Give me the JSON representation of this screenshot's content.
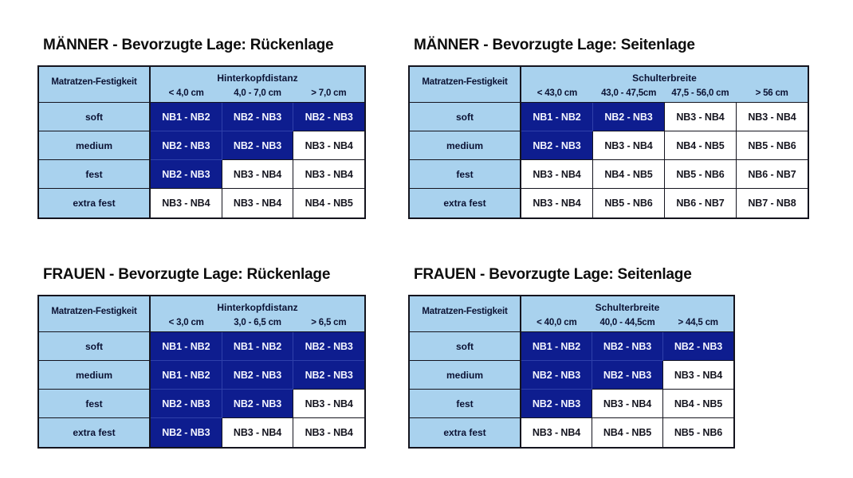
{
  "colors": {
    "light_blue": "#a9d2ee",
    "dark_blue": "#0e1d8f",
    "divider_blue": "#2f40aa",
    "grid_black": "#14141e",
    "cell_white": "#ffffff",
    "header_text_navy": "#0b1233",
    "dark_cell_text": "#f4f6ff",
    "light_cell_text": "#15151f",
    "title_color": "#0d0d0d"
  },
  "tables": [
    {
      "id": "maenner-rueckenlage",
      "title": "MÄNNER - Bevorzugte Lage: Rückenlage",
      "corner_label": "Matratzen-Festigkeit",
      "group_label": "Hinterkopfdistanz",
      "col_labels": [
        "< 4,0 cm",
        "4,0 - 7,0 cm",
        "> 7,0 cm"
      ],
      "row_labels": [
        "soft",
        "medium",
        "fest",
        "extra fest"
      ],
      "values": [
        [
          "NB1 - NB2",
          "NB2 - NB3",
          "NB2 - NB3"
        ],
        [
          "NB2 - NB3",
          "NB2 - NB3",
          "NB3 - NB4"
        ],
        [
          "NB2 - NB3",
          "NB3 - NB4",
          "NB3 - NB4"
        ],
        [
          "NB3 - NB4",
          "NB3 - NB4",
          "NB4 - NB5"
        ]
      ],
      "highlighted": [
        [
          true,
          true,
          true
        ],
        [
          true,
          true,
          false
        ],
        [
          true,
          false,
          false
        ],
        [
          false,
          false,
          false
        ]
      ]
    },
    {
      "id": "maenner-seitenlage",
      "title": "MÄNNER - Bevorzugte Lage: Seitenlage",
      "corner_label": "Matratzen-Festigkeit",
      "group_label": "Schulterbreite",
      "col_labels": [
        "< 43,0 cm",
        "43,0 - 47,5cm",
        "47,5 - 56,0 cm",
        "> 56 cm"
      ],
      "row_labels": [
        "soft",
        "medium",
        "fest",
        "extra fest"
      ],
      "values": [
        [
          "NB1 - NB2",
          "NB2 - NB3",
          "NB3 - NB4",
          "NB3 - NB4"
        ],
        [
          "NB2 - NB3",
          "NB3 - NB4",
          "NB4 - NB5",
          "NB5 - NB6"
        ],
        [
          "NB3 - NB4",
          "NB4 - NB5",
          "NB5 - NB6",
          "NB6 - NB7"
        ],
        [
          "NB3 - NB4",
          "NB5 - NB6",
          "NB6 - NB7",
          "NB7 - NB8"
        ]
      ],
      "highlighted": [
        [
          true,
          true,
          false,
          false
        ],
        [
          true,
          false,
          false,
          false
        ],
        [
          false,
          false,
          false,
          false
        ],
        [
          false,
          false,
          false,
          false
        ]
      ]
    },
    {
      "id": "frauen-rueckenlage",
      "title": "FRAUEN - Bevorzugte Lage: Rückenlage",
      "corner_label": "Matratzen-Festigkeit",
      "group_label": "Hinterkopfdistanz",
      "col_labels": [
        "< 3,0 cm",
        "3,0 - 6,5 cm",
        "> 6,5 cm"
      ],
      "row_labels": [
        "soft",
        "medium",
        "fest",
        "extra fest"
      ],
      "values": [
        [
          "NB1 - NB2",
          "NB1 - NB2",
          "NB2 - NB3"
        ],
        [
          "NB1 - NB2",
          "NB2 - NB3",
          "NB2 - NB3"
        ],
        [
          "NB2 - NB3",
          "NB2 - NB3",
          "NB3 - NB4"
        ],
        [
          "NB2 - NB3",
          "NB3 - NB4",
          "NB3 - NB4"
        ]
      ],
      "highlighted": [
        [
          true,
          true,
          true
        ],
        [
          true,
          true,
          true
        ],
        [
          true,
          true,
          false
        ],
        [
          true,
          false,
          false
        ]
      ]
    },
    {
      "id": "frauen-seitenlage",
      "title": "FRAUEN - Bevorzugte Lage: Seitenlage",
      "corner_label": "Matratzen-Festigkeit",
      "group_label": "Schulterbreite",
      "col_labels": [
        "< 40,0 cm",
        "40,0 - 44,5cm",
        "> 44,5 cm"
      ],
      "row_labels": [
        "soft",
        "medium",
        "fest",
        "extra fest"
      ],
      "values": [
        [
          "NB1 - NB2",
          "NB2 - NB3",
          "NB2 - NB3"
        ],
        [
          "NB2 - NB3",
          "NB2 - NB3",
          "NB3 - NB4"
        ],
        [
          "NB2 - NB3",
          "NB3 - NB4",
          "NB4 - NB5"
        ],
        [
          "NB3 - NB4",
          "NB4 - NB5",
          "NB5 - NB6"
        ]
      ],
      "highlighted": [
        [
          true,
          true,
          true
        ],
        [
          true,
          true,
          false
        ],
        [
          true,
          false,
          false
        ],
        [
          false,
          false,
          false
        ]
      ]
    }
  ]
}
